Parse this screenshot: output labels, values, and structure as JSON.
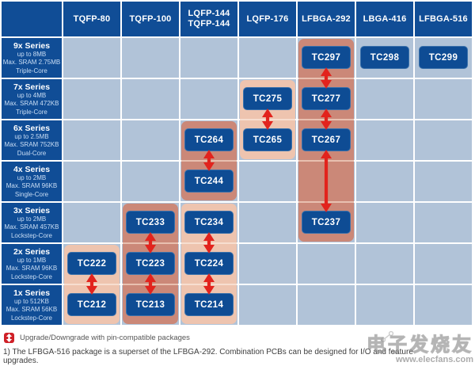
{
  "table": {
    "columns": [
      {
        "lines": [
          "TQFP-80"
        ]
      },
      {
        "lines": [
          "TQFP-100"
        ]
      },
      {
        "lines": [
          "LQFP-144",
          "TQFP-144"
        ]
      },
      {
        "lines": [
          "LQFP-176"
        ]
      },
      {
        "lines": [
          "LFBGA-292"
        ]
      },
      {
        "lines": [
          "LBGA-416"
        ]
      },
      {
        "lines": [
          "LFBGA-516"
        ]
      }
    ],
    "rows": [
      {
        "series": "9x Series",
        "flash": "up to 8MB",
        "sram": "Max. SRAM 2.75MB",
        "core": "Triple-Core"
      },
      {
        "series": "7x Series",
        "flash": "up to 4MB",
        "sram": "Max. SRAM 472KB",
        "core": "Triple-Core"
      },
      {
        "series": "6x Series",
        "flash": "up to 2.5MB",
        "sram": "Max. SRAM 752KB",
        "core": "Dual-Core"
      },
      {
        "series": "4x Series",
        "flash": "up to 2MB",
        "sram": "Max. SRAM 96KB",
        "core": "Single-Core"
      },
      {
        "series": "3x Series",
        "flash": "up to 2MB",
        "sram": "Max. SRAM 457KB",
        "core": "Lockstep-Core"
      },
      {
        "series": "2x Series",
        "flash": "up to 1MB",
        "sram": "Max. SRAM 96KB",
        "core": "Lockstep-Core"
      },
      {
        "series": "1x Series",
        "flash": "up to 512KB",
        "sram": "Max. SRAM 56KB",
        "core": "Lockstep-Core"
      }
    ],
    "chips": [
      {
        "label": "TC297",
        "row": 0,
        "col": 4
      },
      {
        "label": "TC298",
        "row": 0,
        "col": 5
      },
      {
        "label": "TC299",
        "row": 0,
        "col": 6
      },
      {
        "label": "TC275",
        "row": 1,
        "col": 3
      },
      {
        "label": "TC277",
        "row": 1,
        "col": 4
      },
      {
        "label": "TC264",
        "row": 2,
        "col": 2
      },
      {
        "label": "TC265",
        "row": 2,
        "col": 3
      },
      {
        "label": "TC267",
        "row": 2,
        "col": 4
      },
      {
        "label": "TC244",
        "row": 3,
        "col": 2
      },
      {
        "label": "TC233",
        "row": 4,
        "col": 1
      },
      {
        "label": "TC234",
        "row": 4,
        "col": 2
      },
      {
        "label": "TC237",
        "row": 4,
        "col": 4
      },
      {
        "label": "TC222",
        "row": 5,
        "col": 0
      },
      {
        "label": "TC223",
        "row": 5,
        "col": 1
      },
      {
        "label": "TC224",
        "row": 5,
        "col": 2
      },
      {
        "label": "TC212",
        "row": 6,
        "col": 0
      },
      {
        "label": "TC213",
        "row": 6,
        "col": 1
      },
      {
        "label": "TC214",
        "row": 6,
        "col": 2
      }
    ],
    "highlights": [
      {
        "col": 0,
        "from": 5,
        "to": 6,
        "tone": "light"
      },
      {
        "col": 1,
        "from": 4,
        "to": 6,
        "tone": "dark"
      },
      {
        "col": 2,
        "from": 2,
        "to": 3,
        "tone": "dark"
      },
      {
        "col": 2,
        "from": 4,
        "to": 6,
        "tone": "light"
      },
      {
        "col": 3,
        "from": 1,
        "to": 2,
        "tone": "light"
      },
      {
        "col": 4,
        "from": 0,
        "to": 4,
        "tone": "dark"
      }
    ],
    "arrows": [
      {
        "col": 4,
        "from": 0,
        "to": 1
      },
      {
        "col": 4,
        "from": 1,
        "to": 2
      },
      {
        "col": 4,
        "from": 2,
        "to": 4
      },
      {
        "col": 3,
        "from": 1,
        "to": 2
      },
      {
        "col": 2,
        "from": 2,
        "to": 3
      },
      {
        "col": 1,
        "from": 4,
        "to": 5
      },
      {
        "col": 1,
        "from": 5,
        "to": 6
      },
      {
        "col": 0,
        "from": 5,
        "to": 6
      },
      {
        "col": 2,
        "from": 4,
        "to": 5
      },
      {
        "col": 2,
        "from": 5,
        "to": 6
      }
    ]
  },
  "legend": {
    "icon": "upgrade-downgrade-icon",
    "label": "Upgrade/Downgrade with pin-compatible packages"
  },
  "footnote": "1) The LFBGA-516 package is a superset of the LFBGA-292. Combination PCBs can be designed for I/O and feature upgrades.",
  "watermark": {
    "text": "电子发烧友",
    "url": "www.elecfans.com"
  },
  "colors": {
    "navy": "#104d96",
    "chip_blue": "#0e4c94",
    "cell_blue": "#b1c3d8",
    "salmon_dark": "#cb8878",
    "salmon_dark_stripe": "#e8c0b0",
    "salmon_light": "#eec4af",
    "salmon_light_stripe": "#f7ded0",
    "arrow_red": "#e2231d",
    "legend_red": "#cf2027"
  }
}
